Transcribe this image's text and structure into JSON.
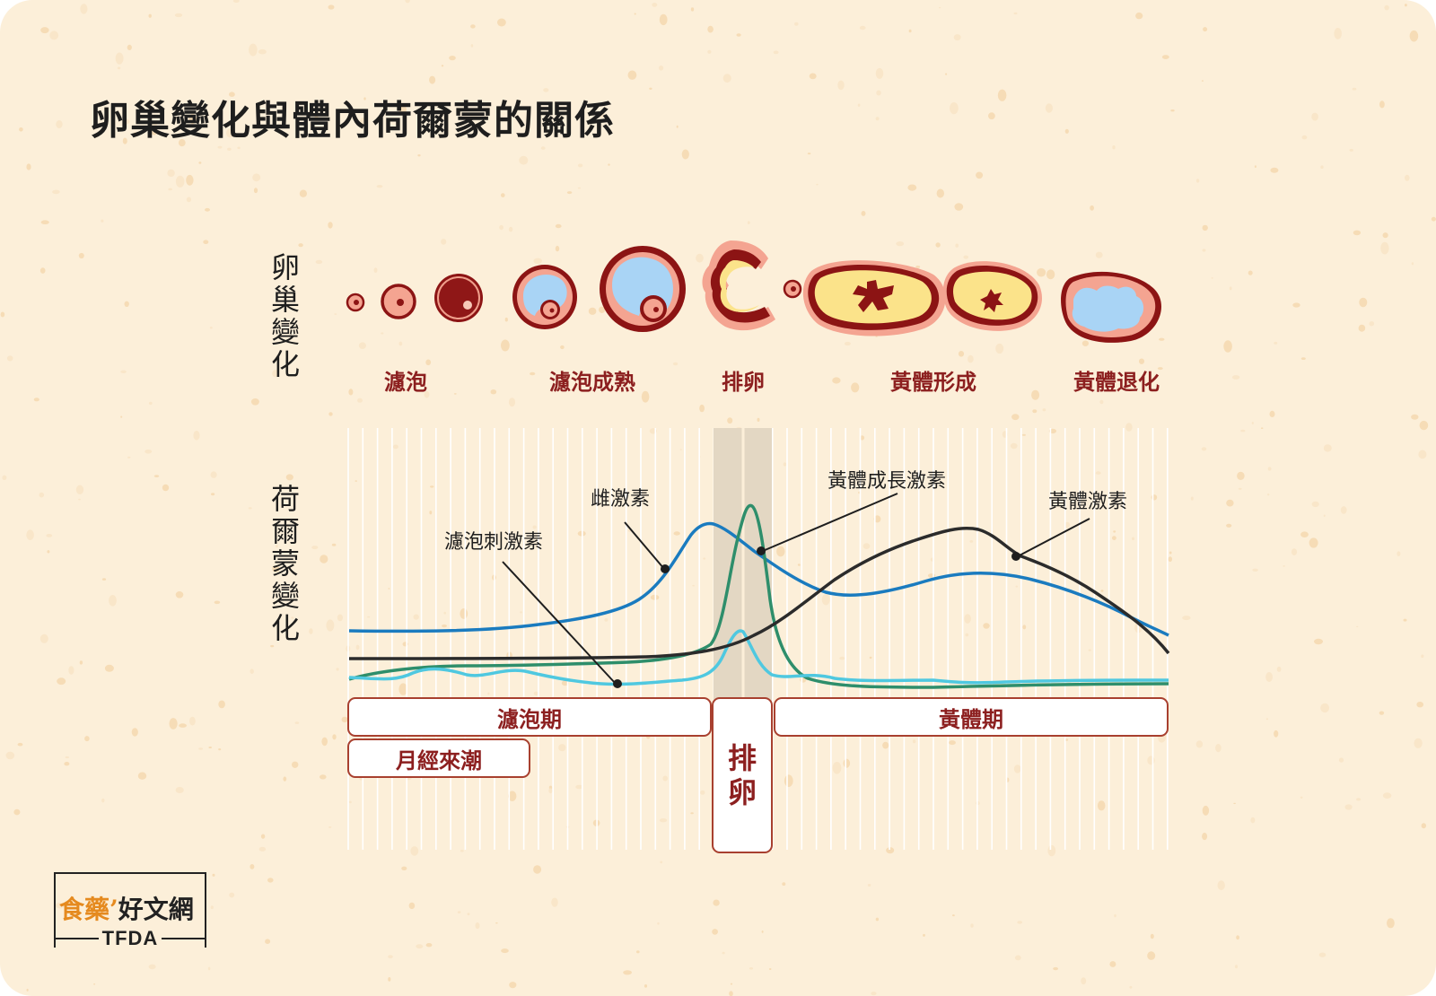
{
  "title": "卵巢變化與體內荷爾蒙的關係",
  "side_labels": {
    "ovary": [
      "卵",
      "巢",
      "變",
      "化"
    ],
    "hormone": [
      "荷",
      "爾",
      "蒙",
      "變",
      "化"
    ]
  },
  "stages": [
    {
      "id": "follicle",
      "label": "濾泡"
    },
    {
      "id": "mature",
      "label": "濾泡成熟"
    },
    {
      "id": "ovulation",
      "label": "排卵"
    },
    {
      "id": "corpus-luteum-formation",
      "label": "黃體形成"
    },
    {
      "id": "corpus-luteum-regression",
      "label": "黃體退化"
    }
  ],
  "hormones": [
    {
      "id": "fsh",
      "label": "濾泡刺激素",
      "color": "#4fc8e0"
    },
    {
      "id": "estrogen",
      "label": "雌激素",
      "color": "#1a7bbf"
    },
    {
      "id": "lh",
      "label": "黃體成長激素",
      "color": "#2e8e6b"
    },
    {
      "id": "progesterone",
      "label": "黃體激素",
      "color": "#2b2b2b"
    }
  ],
  "phases": {
    "follicular": "濾泡期",
    "menstruation": "月經來潮",
    "ovulation": [
      "排",
      "卵"
    ],
    "luteal": "黃體期"
  },
  "logo": {
    "part1": "食藥",
    "apostrophe": "’",
    "part2": "好文網",
    "tfda": "TFDA"
  },
  "colors": {
    "background": "#fcefd9",
    "accent": "#8c1f1f",
    "ovulation_band": "#e3d7c3"
  }
}
